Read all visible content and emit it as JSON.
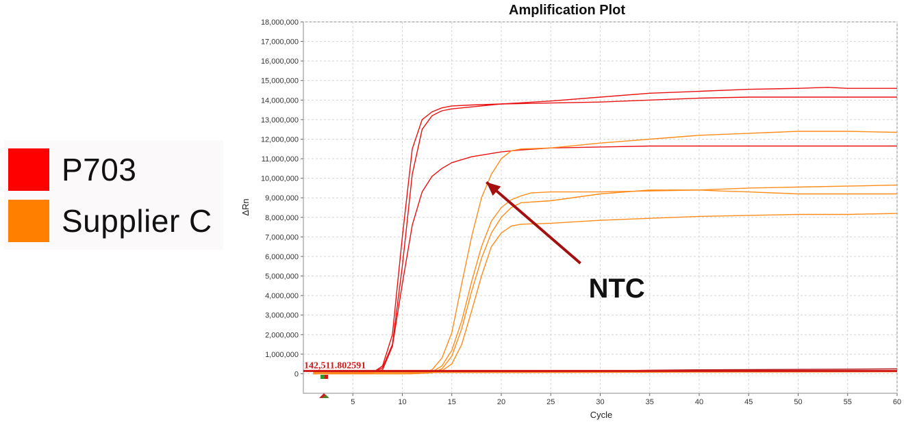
{
  "legend": [
    {
      "label": "P703",
      "color": "#ff0000"
    },
    {
      "label": "Supplier C",
      "color": "#ff8000"
    }
  ],
  "chart_data": {
    "type": "line",
    "title": "Amplification Plot",
    "xlabel": "Cycle",
    "ylabel": "ΔRn",
    "xlim": [
      0,
      60
    ],
    "ylim": [
      -1000000,
      18000000
    ],
    "x_ticks": [
      5,
      10,
      15,
      20,
      25,
      30,
      35,
      40,
      45,
      50,
      55,
      60
    ],
    "y_ticks": [
      0,
      1000000,
      2000000,
      3000000,
      4000000,
      5000000,
      6000000,
      7000000,
      8000000,
      9000000,
      10000000,
      11000000,
      12000000,
      13000000,
      14000000,
      15000000,
      16000000,
      17000000,
      18000000
    ],
    "y_tick_labels": [
      "0",
      "1,000,000",
      "2,000,000",
      "3,000,000",
      "4,000,000",
      "5,000,000",
      "6,000,000",
      "7,000,000",
      "8,000,000",
      "9,000,000",
      "10,000,000",
      "11,000,000",
      "12,000,000",
      "13,000,000",
      "14,000,000",
      "15,000,000",
      "16,000,000",
      "17,000,000",
      "18,000,000"
    ],
    "grid": true,
    "threshold": {
      "value": 142511.802591,
      "label": "142,511.802591",
      "color": "#d01818"
    },
    "series": [
      {
        "color": "#e81010",
        "points": [
          [
            1,
            0
          ],
          [
            7,
            50000
          ],
          [
            8,
            400000
          ],
          [
            9,
            2000000
          ],
          [
            10,
            7000000
          ],
          [
            11,
            11500000
          ],
          [
            12,
            13000000
          ],
          [
            13,
            13400000
          ],
          [
            14,
            13600000
          ],
          [
            15,
            13700000
          ],
          [
            17,
            13750000
          ],
          [
            20,
            13800000
          ],
          [
            25,
            13950000
          ],
          [
            30,
            14150000
          ],
          [
            35,
            14350000
          ],
          [
            40,
            14450000
          ],
          [
            45,
            14550000
          ],
          [
            50,
            14600000
          ],
          [
            53,
            14650000
          ],
          [
            55,
            14600000
          ],
          [
            60,
            14600000
          ]
        ]
      },
      {
        "color": "#e81010",
        "points": [
          [
            1,
            0
          ],
          [
            7,
            50000
          ],
          [
            8,
            300000
          ],
          [
            9,
            1500000
          ],
          [
            10,
            5500000
          ],
          [
            11,
            10200000
          ],
          [
            12,
            12500000
          ],
          [
            13,
            13200000
          ],
          [
            14,
            13450000
          ],
          [
            15,
            13550000
          ],
          [
            17,
            13650000
          ],
          [
            20,
            13800000
          ],
          [
            25,
            13850000
          ],
          [
            30,
            13900000
          ],
          [
            35,
            14000000
          ],
          [
            40,
            14100000
          ],
          [
            45,
            14150000
          ],
          [
            50,
            14150000
          ],
          [
            55,
            14150000
          ],
          [
            60,
            14150000
          ]
        ]
      },
      {
        "color": "#e81010",
        "points": [
          [
            1,
            0
          ],
          [
            7,
            50000
          ],
          [
            8,
            200000
          ],
          [
            9,
            1400000
          ],
          [
            10,
            4600000
          ],
          [
            11,
            7600000
          ],
          [
            12,
            9300000
          ],
          [
            13,
            10100000
          ],
          [
            14,
            10500000
          ],
          [
            15,
            10800000
          ],
          [
            17,
            11100000
          ],
          [
            20,
            11350000
          ],
          [
            22,
            11450000
          ],
          [
            25,
            11550000
          ],
          [
            30,
            11600000
          ],
          [
            35,
            11650000
          ],
          [
            40,
            11650000
          ],
          [
            60,
            11650000
          ]
        ]
      },
      {
        "color": "#ff8c1a",
        "points": [
          [
            1,
            0
          ],
          [
            10,
            0
          ],
          [
            12,
            50000
          ],
          [
            13,
            200000
          ],
          [
            14,
            800000
          ],
          [
            15,
            2100000
          ],
          [
            16,
            4600000
          ],
          [
            17,
            7000000
          ],
          [
            18,
            9000000
          ],
          [
            19,
            10200000
          ],
          [
            20,
            11000000
          ],
          [
            21,
            11400000
          ],
          [
            22,
            11500000
          ],
          [
            25,
            11550000
          ],
          [
            30,
            11800000
          ],
          [
            35,
            12000000
          ],
          [
            40,
            12200000
          ],
          [
            45,
            12300000
          ],
          [
            50,
            12400000
          ],
          [
            55,
            12400000
          ],
          [
            60,
            12350000
          ]
        ]
      },
      {
        "color": "#ff8c1a",
        "points": [
          [
            1,
            0
          ],
          [
            11,
            0
          ],
          [
            13,
            100000
          ],
          [
            14,
            400000
          ],
          [
            15,
            1200000
          ],
          [
            16,
            2700000
          ],
          [
            17,
            4700000
          ],
          [
            18,
            6500000
          ],
          [
            19,
            7800000
          ],
          [
            20,
            8500000
          ],
          [
            21,
            8900000
          ],
          [
            22,
            9100000
          ],
          [
            23,
            9250000
          ],
          [
            25,
            9300000
          ],
          [
            30,
            9300000
          ],
          [
            35,
            9350000
          ],
          [
            40,
            9400000
          ],
          [
            42,
            9350000
          ],
          [
            45,
            9300000
          ],
          [
            50,
            9200000
          ],
          [
            55,
            9200000
          ],
          [
            60,
            9200000
          ]
        ]
      },
      {
        "color": "#ff8c1a",
        "points": [
          [
            1,
            0
          ],
          [
            11,
            0
          ],
          [
            13,
            50000
          ],
          [
            14,
            250000
          ],
          [
            15,
            900000
          ],
          [
            16,
            2300000
          ],
          [
            17,
            4200000
          ],
          [
            18,
            5900000
          ],
          [
            19,
            7200000
          ],
          [
            20,
            8000000
          ],
          [
            21,
            8500000
          ],
          [
            22,
            8750000
          ],
          [
            25,
            8850000
          ],
          [
            30,
            9200000
          ],
          [
            35,
            9400000
          ],
          [
            40,
            9400000
          ],
          [
            45,
            9500000
          ],
          [
            50,
            9550000
          ],
          [
            55,
            9600000
          ],
          [
            60,
            9650000
          ]
        ]
      },
      {
        "color": "#ff8c1a",
        "points": [
          [
            1,
            0
          ],
          [
            11,
            0
          ],
          [
            13,
            50000
          ],
          [
            14,
            150000
          ],
          [
            15,
            500000
          ],
          [
            16,
            1500000
          ],
          [
            17,
            3200000
          ],
          [
            18,
            5000000
          ],
          [
            19,
            6500000
          ],
          [
            20,
            7200000
          ],
          [
            21,
            7550000
          ],
          [
            22,
            7650000
          ],
          [
            25,
            7700000
          ],
          [
            30,
            7850000
          ],
          [
            35,
            7950000
          ],
          [
            40,
            8050000
          ],
          [
            45,
            8100000
          ],
          [
            50,
            8150000
          ],
          [
            55,
            8150000
          ],
          [
            60,
            8200000
          ]
        ]
      },
      {
        "color": "#b01010",
        "points": [
          [
            1,
            100000
          ],
          [
            10,
            100000
          ],
          [
            20,
            100000
          ],
          [
            30,
            100000
          ],
          [
            40,
            120000
          ],
          [
            50,
            130000
          ],
          [
            60,
            150000
          ]
        ]
      },
      {
        "color": "#b01010",
        "points": [
          [
            1,
            130000
          ],
          [
            30,
            130000
          ],
          [
            35,
            180000
          ],
          [
            40,
            200000
          ],
          [
            50,
            220000
          ],
          [
            60,
            250000
          ]
        ]
      },
      {
        "color": "#ff8c1a",
        "points": [
          [
            1,
            60000
          ],
          [
            20,
            60000
          ],
          [
            40,
            80000
          ],
          [
            60,
            100000
          ]
        ]
      }
    ],
    "annotations": [
      {
        "text": "NTC",
        "arrow_to": [
          18.5,
          9800000
        ],
        "arrow_from": [
          28,
          5650000
        ]
      }
    ]
  }
}
